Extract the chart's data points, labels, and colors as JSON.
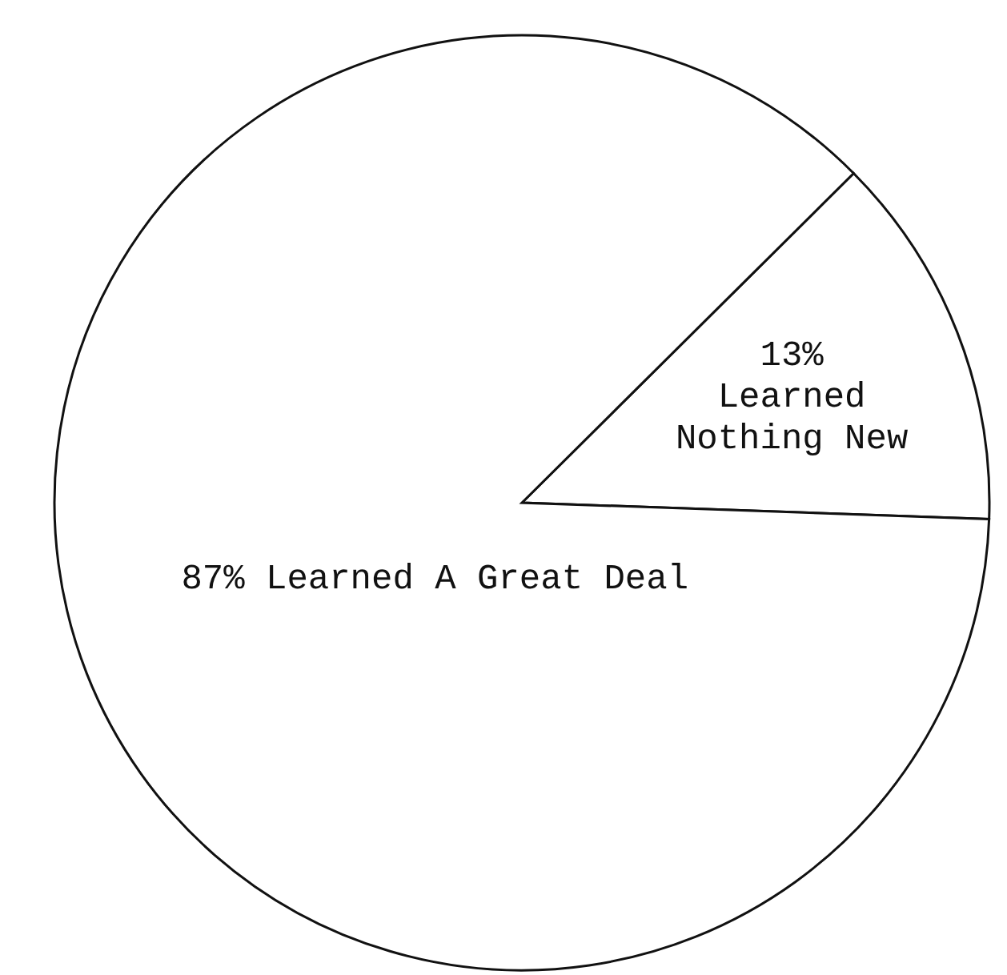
{
  "chart_data": {
    "type": "pie",
    "categories": [
      "Learned Nothing New",
      "Learned A Great Deal"
    ],
    "values": [
      13,
      87
    ],
    "value_labels": [
      "13%",
      "87%"
    ],
    "colors": [
      "#ffffff",
      "#ffffff"
    ],
    "legend": false
  }
}
